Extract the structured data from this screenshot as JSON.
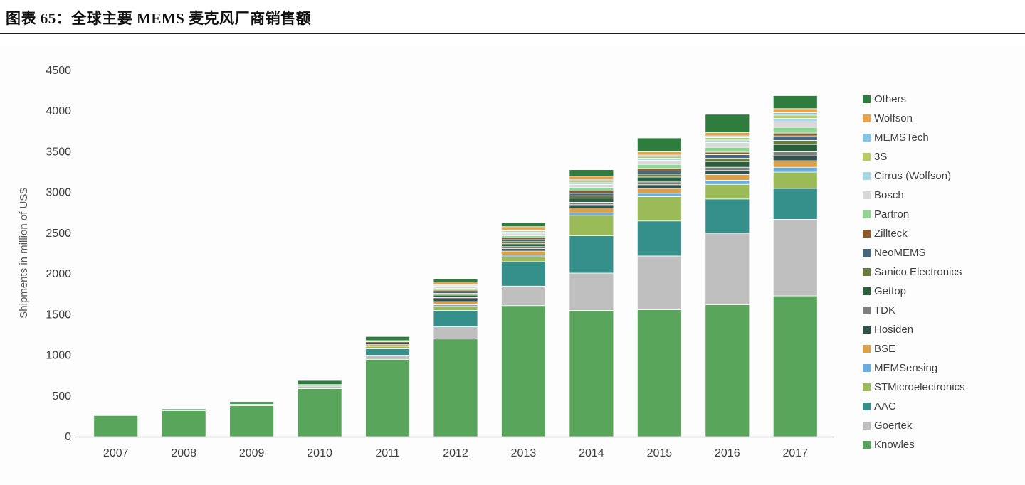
{
  "header": {
    "title": "图表 65：全球主要 MEMS 麦克风厂商销售额"
  },
  "chart_data": {
    "type": "bar",
    "stacked": true,
    "title": "",
    "xlabel": "",
    "ylabel": "Shipments in million of US$",
    "ylim": [
      0,
      4500
    ],
    "yticks": [
      0,
      500,
      1000,
      1500,
      2000,
      2500,
      3000,
      3500,
      4000,
      4500
    ],
    "grid": false,
    "legend_position": "right",
    "legend_order": "reverse-of-stack",
    "categories": [
      "2007",
      "2008",
      "2009",
      "2010",
      "2011",
      "2012",
      "2013",
      "2014",
      "2015",
      "2016",
      "2017"
    ],
    "series": [
      {
        "name": "Knowles",
        "color": "#5aa55c",
        "values": [
          260,
          320,
          380,
          590,
          950,
          1200,
          1610,
          1550,
          1560,
          1620,
          1730
        ]
      },
      {
        "name": "Goertek",
        "color": "#bfbfbf",
        "values": [
          0,
          0,
          0,
          30,
          50,
          150,
          240,
          460,
          660,
          880,
          940
        ]
      },
      {
        "name": "AAC",
        "color": "#35908c",
        "values": [
          0,
          0,
          0,
          0,
          80,
          200,
          300,
          460,
          430,
          420,
          380
        ]
      },
      {
        "name": "STMicroelectronics",
        "color": "#9bbb59",
        "values": [
          0,
          0,
          0,
          0,
          30,
          50,
          60,
          250,
          300,
          180,
          200
        ]
      },
      {
        "name": "MEMSensing",
        "color": "#6badde",
        "values": [
          0,
          0,
          0,
          0,
          0,
          20,
          20,
          30,
          40,
          50,
          60
        ]
      },
      {
        "name": "BSE",
        "color": "#dba14a",
        "values": [
          0,
          0,
          0,
          0,
          20,
          40,
          50,
          60,
          60,
          70,
          80
        ]
      },
      {
        "name": "Hosiden",
        "color": "#31524d",
        "values": [
          0,
          0,
          0,
          0,
          20,
          30,
          30,
          40,
          45,
          50,
          60
        ]
      },
      {
        "name": "TDK",
        "color": "#7f7f7f",
        "values": [
          0,
          0,
          0,
          0,
          0,
          20,
          25,
          30,
          35,
          40,
          50
        ]
      },
      {
        "name": "Gettop",
        "color": "#2c5f3e",
        "values": [
          0,
          0,
          0,
          0,
          0,
          30,
          35,
          50,
          60,
          70,
          90
        ]
      },
      {
        "name": "Sanico Electronics",
        "color": "#667c3e",
        "values": [
          0,
          0,
          0,
          0,
          0,
          20,
          25,
          30,
          35,
          40,
          50
        ]
      },
      {
        "name": "NeoMEMS",
        "color": "#44687d",
        "values": [
          0,
          0,
          0,
          0,
          0,
          20,
          25,
          30,
          40,
          45,
          55
        ]
      },
      {
        "name": "Zillteck",
        "color": "#8c5a28",
        "values": [
          0,
          0,
          0,
          0,
          15,
          20,
          25,
          30,
          30,
          30,
          35
        ]
      },
      {
        "name": "Partron",
        "color": "#8fd694",
        "values": [
          0,
          0,
          20,
          20,
          15,
          20,
          25,
          40,
          50,
          60,
          70
        ]
      },
      {
        "name": "Bosch",
        "color": "#d9d9d9",
        "values": [
          0,
          0,
          0,
          0,
          0,
          20,
          30,
          40,
          50,
          60,
          70
        ]
      },
      {
        "name": "Cirrus (Wolfson)",
        "color": "#a6d9e3",
        "values": [
          0,
          0,
          0,
          0,
          0,
          10,
          15,
          20,
          25,
          30,
          40
        ]
      },
      {
        "name": "3S",
        "color": "#b9cc62",
        "values": [
          0,
          0,
          0,
          0,
          0,
          10,
          15,
          20,
          25,
          30,
          40
        ]
      },
      {
        "name": "MEMSTech",
        "color": "#82c3e6",
        "values": [
          0,
          0,
          0,
          0,
          0,
          10,
          10,
          15,
          15,
          20,
          30
        ]
      },
      {
        "name": "Wolfson",
        "color": "#e8a348",
        "values": [
          0,
          0,
          0,
          0,
          0,
          30,
          40,
          45,
          40,
          40,
          50
        ]
      },
      {
        "name": "Others",
        "color": "#2e7d3e",
        "values": [
          10,
          20,
          30,
          50,
          50,
          40,
          50,
          80,
          170,
          225,
          160
        ]
      }
    ],
    "totals": [
      270,
      340,
      430,
      690,
      1230,
      1940,
      2630,
      3280,
      3670,
      3960,
      4190
    ]
  },
  "colors": {
    "axis_text": "#404040",
    "axis_line": "#bfbfbf",
    "ylabel_text": "#595959",
    "legend_text": "#404040",
    "rule": "#1c1c1c"
  }
}
